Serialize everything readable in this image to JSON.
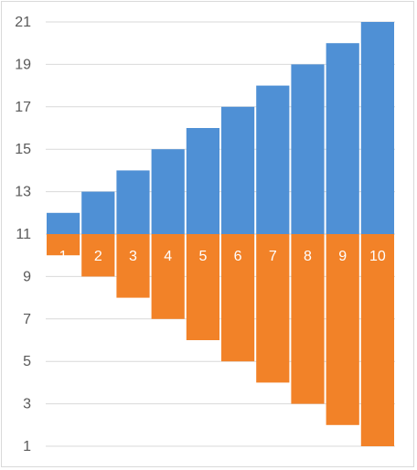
{
  "chart_data": {
    "type": "bar",
    "categories": [
      "1",
      "2",
      "3",
      "4",
      "5",
      "6",
      "7",
      "8",
      "9",
      "10"
    ],
    "baseline": 11,
    "ylim": [
      1,
      21
    ],
    "yticks": [
      "1",
      "3",
      "5",
      "7",
      "9",
      "11",
      "13",
      "15",
      "17",
      "19",
      "21"
    ],
    "grid": true,
    "legend": "none",
    "series": [
      {
        "values": [
          12,
          13,
          14,
          15,
          16,
          17,
          18,
          19,
          20,
          21
        ],
        "color": "#4f90d5"
      },
      {
        "values": [
          10,
          9,
          8,
          7,
          6,
          5,
          4,
          3,
          2,
          1
        ],
        "color": "#f28228"
      }
    ]
  }
}
